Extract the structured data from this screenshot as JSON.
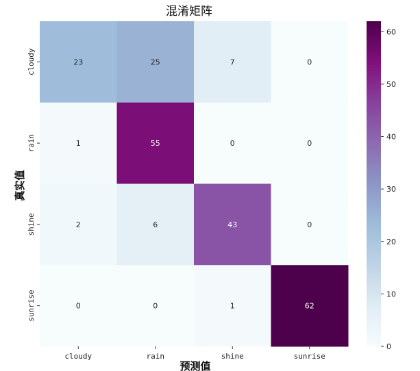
{
  "chart_data": {
    "type": "heatmap",
    "title": "混淆矩阵",
    "xlabel": "预测值",
    "ylabel": "真实值",
    "x_categories": [
      "cloudy",
      "rain",
      "shine",
      "sunrise"
    ],
    "y_categories": [
      "cloudy",
      "rain",
      "shine",
      "sunrise"
    ],
    "matrix": [
      [
        23,
        25,
        7,
        0
      ],
      [
        1,
        55,
        0,
        0
      ],
      [
        2,
        6,
        43,
        0
      ],
      [
        0,
        0,
        1,
        62
      ]
    ],
    "colorbar": {
      "min": 0,
      "max": 62,
      "ticks": [
        0,
        10,
        20,
        30,
        40,
        50,
        60
      ],
      "colormap": "BuPu",
      "colors": [
        "#f7fcfd",
        "#e0ecf4",
        "#bfd3e6",
        "#9ebcda",
        "#8c96c6",
        "#8c6bb1",
        "#88419d",
        "#810f7c",
        "#4d004b"
      ]
    }
  }
}
